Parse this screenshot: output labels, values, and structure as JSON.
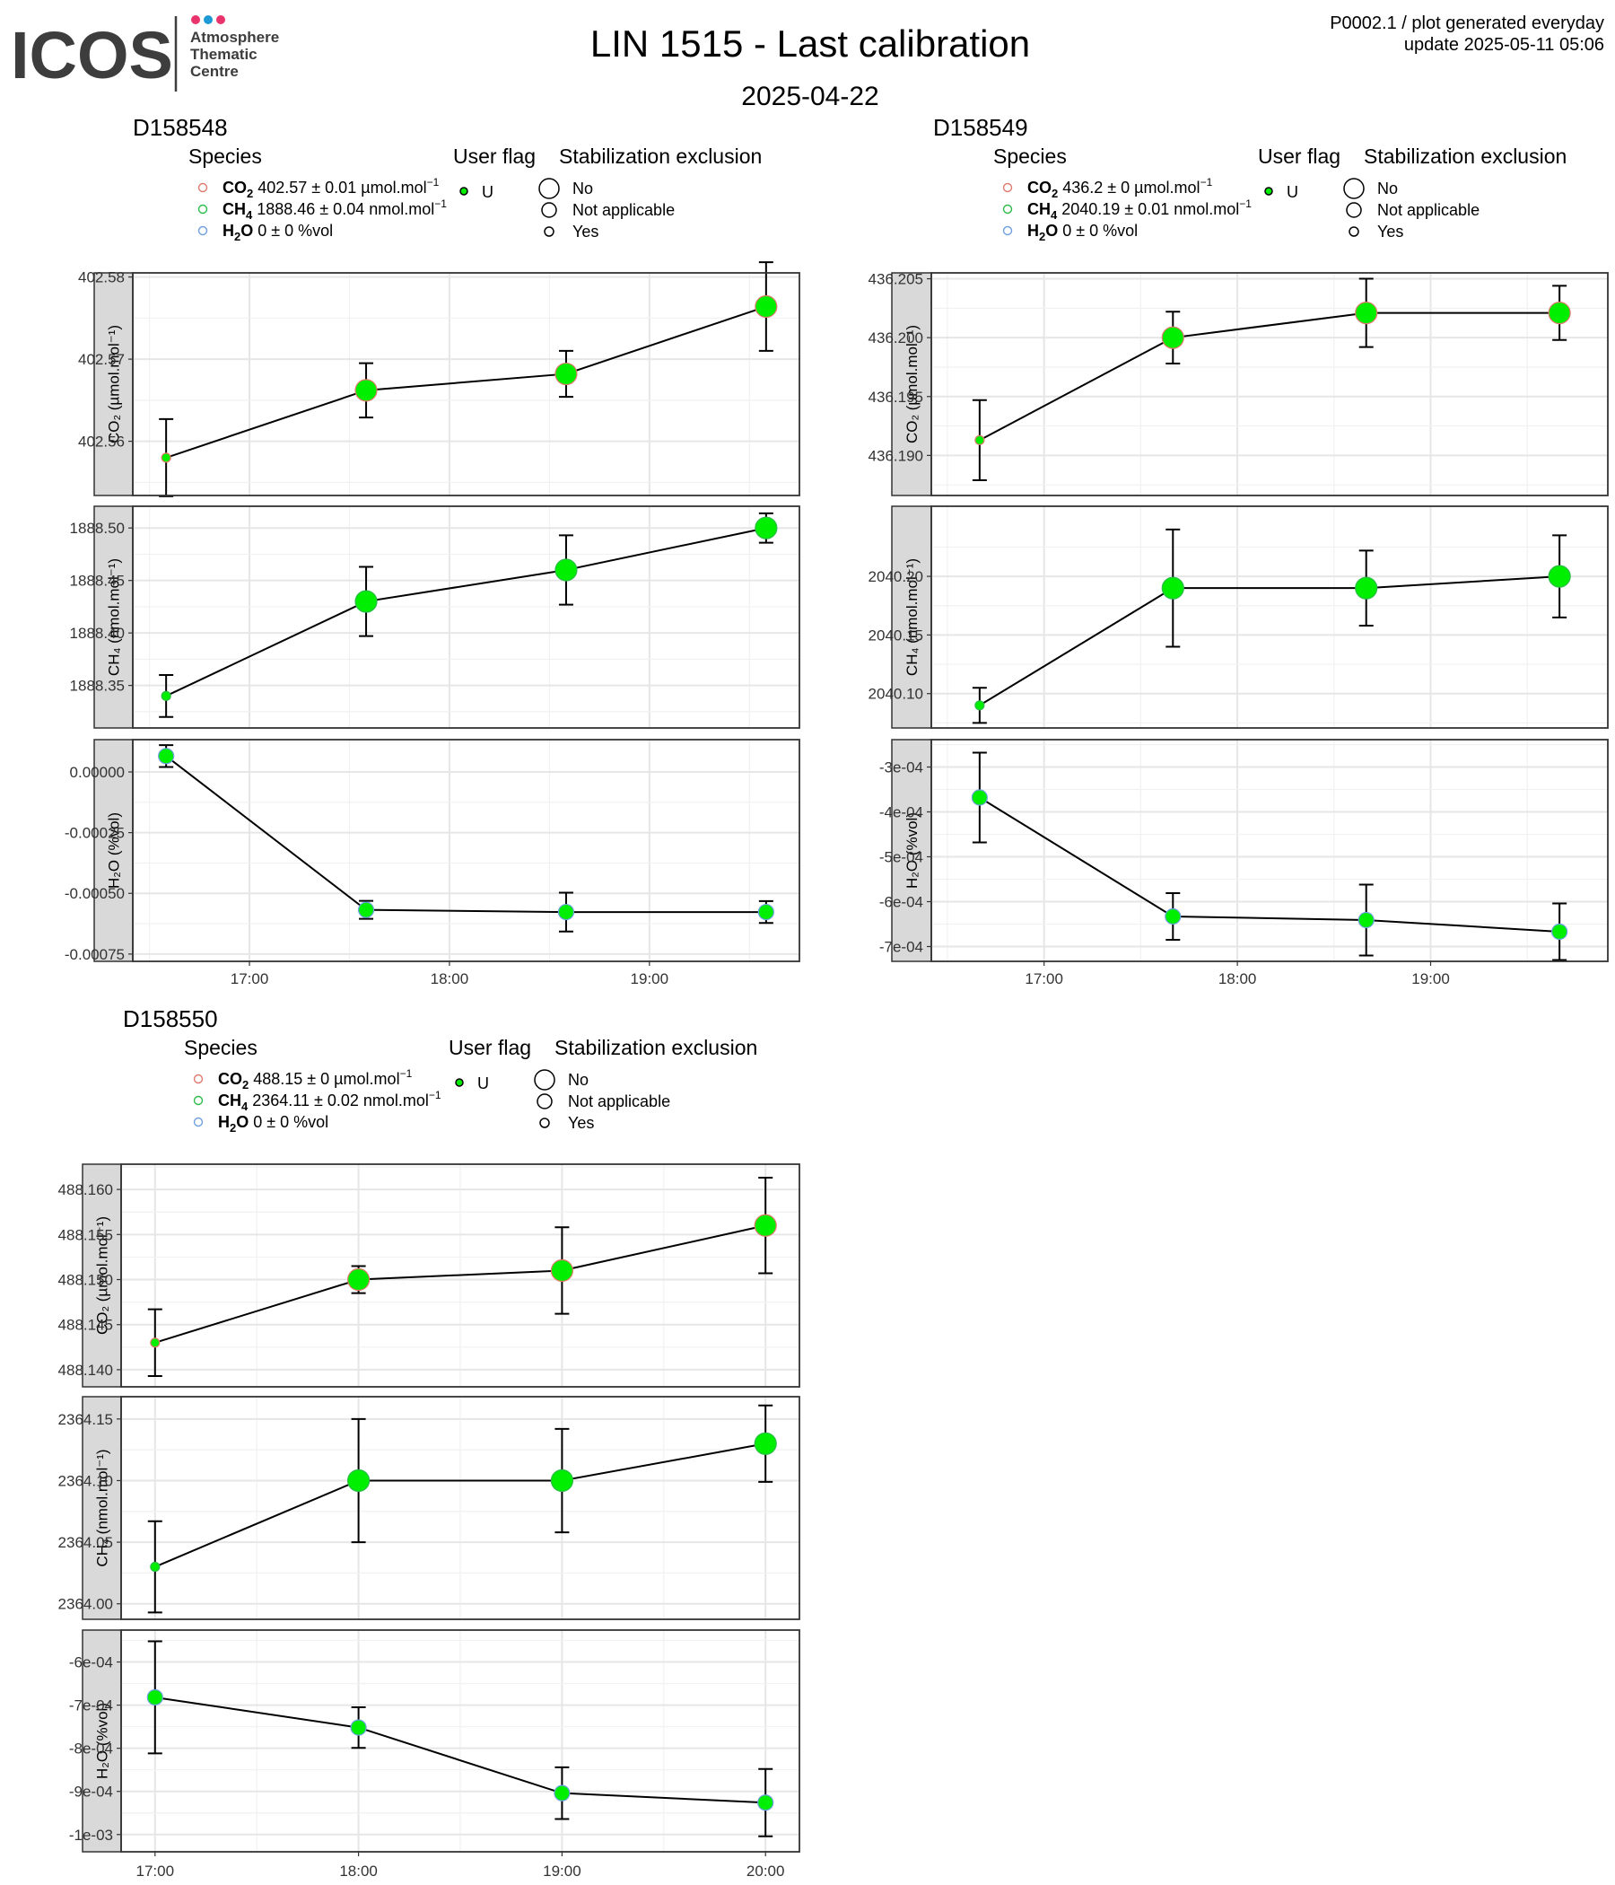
{
  "header": {
    "logo_text": "ICOS",
    "logo_subtitle": [
      "Atmosphere",
      "Thematic",
      "Centre"
    ],
    "logo_dot_colors": [
      "#e8336d",
      "#1d9ad6",
      "#e8336d"
    ],
    "title": "LIN 1515 - Last calibration",
    "subtitle": "2025-04-22",
    "info_line1": "P0002.1 / plot generated everyday",
    "info_line2": "update  2025-05-11 05:06"
  },
  "legend_labels": {
    "species": "Species",
    "user_flag": "User flag",
    "stabilization": "Stabilization exclusion",
    "flag_value": "U",
    "stab_values": [
      "No",
      "Not applicable",
      "Yes"
    ]
  },
  "colors": {
    "point_fill": "#00ee00",
    "co2_dot": "#e07a6f",
    "ch4_dot": "#2dbb4a",
    "h2o_dot": "#6fa0e0",
    "strip_bg": "#d9d9d9"
  },
  "chart_data": [
    {
      "type": "scatter",
      "title": "D158548",
      "legend": [
        {
          "species": "CO2",
          "value": "402.57",
          "pm": "0.01",
          "unit": "µmol.mol⁻¹"
        },
        {
          "species": "CH4",
          "value": "1888.46",
          "pm": "0.04",
          "unit": "nmol.mol⁻¹"
        },
        {
          "species": "H2O",
          "value": "0",
          "pm": "0",
          "unit": "%vol"
        }
      ],
      "x_ticks": [
        "17:00",
        "18:00",
        "19:00"
      ],
      "x_range": [
        "16:25",
        "19:45"
      ],
      "panels": [
        {
          "ylabel": "CO₂ (µmol.mol⁻¹)",
          "ylim": [
            402.5534,
            402.5805
          ],
          "yticks": [
            402.56,
            402.57,
            402.58
          ],
          "tick_labels": [
            "402.56",
            "402.57",
            "402.58"
          ],
          "points": [
            {
              "x": "16:35",
              "y": 402.558,
              "err": 0.0047,
              "size": "small"
            },
            {
              "x": "17:35",
              "y": 402.5662,
              "err": 0.0033,
              "size": "large"
            },
            {
              "x": "18:35",
              "y": 402.5682,
              "err": 0.0028,
              "size": "large"
            },
            {
              "x": "19:35",
              "y": 402.5764,
              "err": 0.0054,
              "size": "large"
            }
          ]
        },
        {
          "ylabel": "CH₄ (nmol.mol⁻¹)",
          "ylim": [
            1888.3095,
            1888.5207
          ],
          "yticks": [
            1888.35,
            1888.4,
            1888.45,
            1888.5
          ],
          "tick_labels": [
            "1888.35",
            "1888.40",
            "1888.45",
            "1888.50"
          ],
          "points": [
            {
              "x": "16:35",
              "y": 1888.34,
              "err": 0.02,
              "size": "small"
            },
            {
              "x": "17:35",
              "y": 1888.43,
              "err": 0.033,
              "size": "large"
            },
            {
              "x": "18:35",
              "y": 1888.46,
              "err": 0.033,
              "size": "large"
            },
            {
              "x": "19:35",
              "y": 1888.5,
              "err": 0.014,
              "size": "large"
            }
          ]
        },
        {
          "ylabel": "H₂O (%vol)",
          "ylim": [
            -0.00078,
            0.000133
          ],
          "yticks": [
            0,
            -0.00025,
            -0.0005,
            -0.00075
          ],
          "tick_labels": [
            "0.00000",
            "-0.00025",
            "-0.00050",
            "-0.00075"
          ],
          "points": [
            {
              "x": "16:35",
              "y": 6.54e-05,
              "err": 4.5e-05,
              "size": "medium"
            },
            {
              "x": "17:35",
              "y": -0.000568,
              "err": 3.7e-05,
              "size": "medium"
            },
            {
              "x": "18:35",
              "y": -0.000577,
              "err": 8e-05,
              "size": "medium"
            },
            {
              "x": "19:35",
              "y": -0.000577,
              "err": 4.5e-05,
              "size": "medium"
            }
          ]
        }
      ]
    },
    {
      "type": "scatter",
      "title": "D158549",
      "legend": [
        {
          "species": "CO2",
          "value": "436.2",
          "pm": "0",
          "unit": "µmol.mol⁻¹"
        },
        {
          "species": "CH4",
          "value": "2040.19",
          "pm": "0.01",
          "unit": "nmol.mol⁻¹"
        },
        {
          "species": "H2O",
          "value": "0",
          "pm": "0",
          "unit": "%vol"
        }
      ],
      "x_ticks": [
        "17:00",
        "18:00",
        "19:00"
      ],
      "x_range": [
        "16:25",
        "19:55"
      ],
      "panels": [
        {
          "ylabel": "CO₂ (µmol.mol⁻¹)",
          "ylim": [
            436.1866,
            436.2055
          ],
          "yticks": [
            436.19,
            436.195,
            436.2,
            436.205
          ],
          "tick_labels": [
            "436.190",
            "436.195",
            "436.200",
            "436.205"
          ],
          "points": [
            {
              "x": "16:40",
              "y": 436.1913,
              "err": 0.0034,
              "size": "small"
            },
            {
              "x": "17:40",
              "y": 436.2,
              "err": 0.0022,
              "size": "large"
            },
            {
              "x": "18:40",
              "y": 436.2021,
              "err": 0.0029,
              "size": "large"
            },
            {
              "x": "19:40",
              "y": 436.2021,
              "err": 0.0023,
              "size": "large"
            }
          ]
        },
        {
          "ylabel": "CH₄ (nmol.mol⁻¹)",
          "ylim": [
            2040.0707,
            2040.2598
          ],
          "yticks": [
            2040.1,
            2040.15,
            2040.2
          ],
          "tick_labels": [
            "2040.10",
            "2040.15",
            "2040.20"
          ],
          "points": [
            {
              "x": "16:40",
              "y": 2040.09,
              "err": 0.015,
              "size": "small"
            },
            {
              "x": "17:40",
              "y": 2040.19,
              "err": 0.05,
              "size": "large"
            },
            {
              "x": "18:40",
              "y": 2040.19,
              "err": 0.032,
              "size": "large"
            },
            {
              "x": "19:40",
              "y": 2040.2,
              "err": 0.035,
              "size": "large"
            }
          ]
        },
        {
          "ylabel": "H₂O (%vol)",
          "ylim": [
            -0.000733,
            -0.000239
          ],
          "yticks": [
            -0.0003,
            -0.0004,
            -0.0005,
            -0.0006,
            -0.0007
          ],
          "tick_labels": [
            "-3e-04",
            "-4e-04",
            "-5e-04",
            "-6e-04",
            "-7e-04"
          ],
          "points": [
            {
              "x": "16:40",
              "y": -0.000368,
              "err": 0.0001,
              "size": "medium"
            },
            {
              "x": "17:40",
              "y": -0.000633,
              "err": 5.2e-05,
              "size": "medium"
            },
            {
              "x": "18:40",
              "y": -0.000641,
              "err": 7.9e-05,
              "size": "medium"
            },
            {
              "x": "19:40",
              "y": -0.000667,
              "err": 6.3e-05,
              "size": "medium"
            }
          ]
        }
      ]
    },
    {
      "type": "scatter",
      "title": "D158550",
      "legend": [
        {
          "species": "CO2",
          "value": "488.15",
          "pm": "0",
          "unit": "µmol.mol⁻¹"
        },
        {
          "species": "CH4",
          "value": "2364.11",
          "pm": "0.02",
          "unit": "nmol.mol⁻¹"
        },
        {
          "species": "H2O",
          "value": "0",
          "pm": "0",
          "unit": "%vol"
        }
      ],
      "x_ticks": [
        "17:00",
        "18:00",
        "19:00",
        "20:00"
      ],
      "x_range": [
        "16:50",
        "20:10"
      ],
      "panels": [
        {
          "ylabel": "CO₂ (µmol.mol⁻¹)",
          "ylim": [
            488.1381,
            488.1628
          ],
          "yticks": [
            488.14,
            488.145,
            488.15,
            488.155,
            488.16
          ],
          "tick_labels": [
            "488.140",
            "488.145",
            "488.150",
            "488.155",
            "488.160"
          ],
          "points": [
            {
              "x": "17:00",
              "y": 488.143,
              "err": 0.0037,
              "size": "small"
            },
            {
              "x": "18:00",
              "y": 488.15,
              "err": 0.0015,
              "size": "large"
            },
            {
              "x": "19:00",
              "y": 488.151,
              "err": 0.0048,
              "size": "large"
            },
            {
              "x": "20:00",
              "y": 488.156,
              "err": 0.0053,
              "size": "large"
            }
          ]
        },
        {
          "ylabel": "CH₄ (nmol.mol⁻¹)",
          "ylim": [
            2363.9874,
            2364.1681
          ],
          "yticks": [
            2364.0,
            2364.05,
            2364.1,
            2364.15
          ],
          "tick_labels": [
            "2364.00",
            "2364.05",
            "2364.10",
            "2364.15"
          ],
          "points": [
            {
              "x": "17:00",
              "y": 2364.03,
              "err": 0.037,
              "size": "small"
            },
            {
              "x": "18:00",
              "y": 2364.1,
              "err": 0.05,
              "size": "large"
            },
            {
              "x": "19:00",
              "y": 2364.1,
              "err": 0.042,
              "size": "large"
            },
            {
              "x": "20:00",
              "y": 2364.13,
              "err": 0.031,
              "size": "large"
            }
          ]
        },
        {
          "ylabel": "H₂O (%vol)",
          "ylim": [
            -0.00104,
            -0.000526
          ],
          "yticks": [
            -0.0006,
            -0.0007,
            -0.0008,
            -0.0009,
            -0.001
          ],
          "tick_labels": [
            "-6e-04",
            "-7e-04",
            "-8e-04",
            "-9e-04",
            "-1e-03"
          ],
          "points": [
            {
              "x": "17:00",
              "y": -0.000682,
              "err": 0.00013,
              "size": "medium"
            },
            {
              "x": "18:00",
              "y": -0.000752,
              "err": 4.7e-05,
              "size": "medium"
            },
            {
              "x": "19:00",
              "y": -0.000904,
              "err": 6e-05,
              "size": "medium"
            },
            {
              "x": "20:00",
              "y": -0.000926,
              "err": 7.8e-05,
              "size": "medium"
            }
          ]
        }
      ]
    }
  ]
}
